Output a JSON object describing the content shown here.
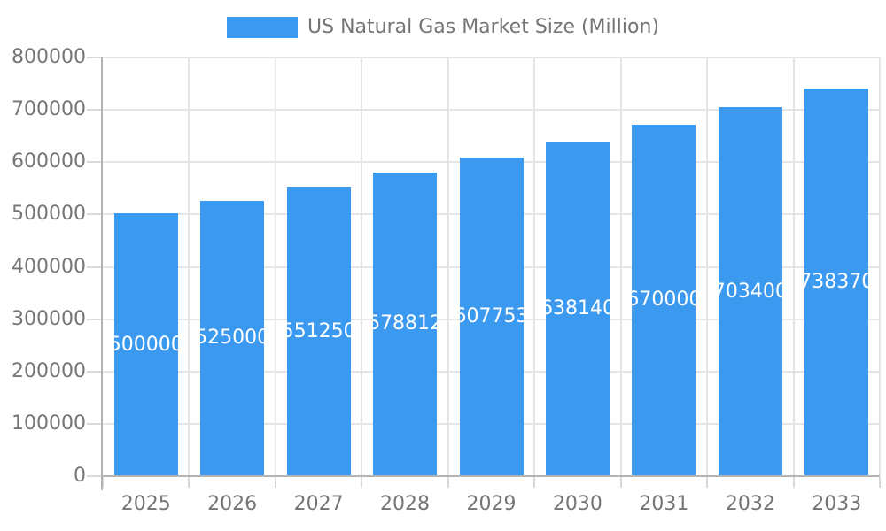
{
  "chart_data": {
    "type": "bar",
    "title": "",
    "xlabel": "",
    "ylabel": "",
    "legend": {
      "position": "top",
      "label": "US Natural Gas Market Size (Million)"
    },
    "categories": [
      "2025",
      "2026",
      "2027",
      "2028",
      "2029",
      "2030",
      "2031",
      "2032",
      "2033"
    ],
    "values": [
      500000,
      525000,
      551250,
      578812,
      607753,
      638140,
      670000,
      703400,
      738370
    ],
    "bar_labels": [
      "500000",
      "525000",
      "551250",
      "578812",
      "607753",
      "638140",
      "670000",
      "703400",
      "738370"
    ],
    "ylim": [
      0,
      800000
    ],
    "ytick_interval": 100000,
    "yticks": [
      "0",
      "100000",
      "200000",
      "300000",
      "400000",
      "500000",
      "600000",
      "700000",
      "800000"
    ],
    "grid": true,
    "colors": {
      "bar": "#3B99EF",
      "grid": "#e5e5e5",
      "tick": "#d9d9d9",
      "axis": "#b3b3b3",
      "text": "#757575",
      "bar_label": "#ffffff",
      "background": "#ffffff"
    }
  }
}
